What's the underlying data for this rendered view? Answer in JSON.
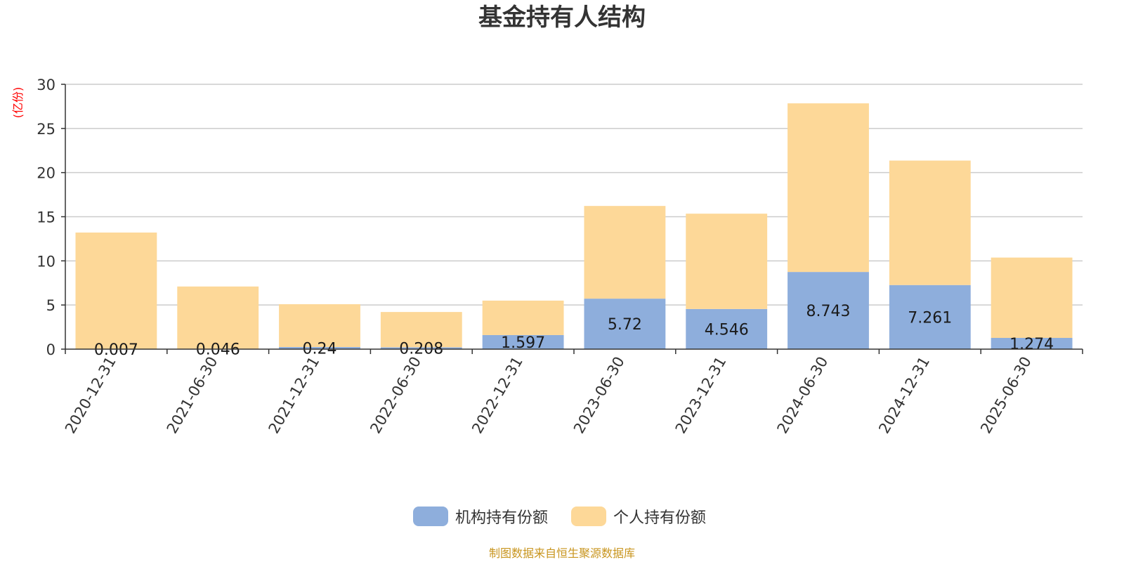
{
  "chart_data": {
    "type": "bar",
    "stacked": true,
    "title": "基金持有人结构",
    "ylabel": "(亿份)",
    "ylim": [
      0,
      30
    ],
    "yticks": [
      0,
      5,
      10,
      15,
      20,
      25,
      30
    ],
    "grid": true,
    "legend_position": "bottom",
    "categories": [
      "2020-12-31",
      "2021-06-30",
      "2021-12-31",
      "2022-06-30",
      "2022-12-31",
      "2023-06-30",
      "2023-12-31",
      "2024-06-30",
      "2024-12-31",
      "2025-06-30"
    ],
    "series": [
      {
        "name": "机构持有份额",
        "color": "#8eaedc",
        "values": [
          0.007,
          0.046,
          0.24,
          0.208,
          1.597,
          5.72,
          4.546,
          8.743,
          7.261,
          1.274
        ],
        "labels": [
          "0.007",
          "0.046",
          "0.24",
          "0.208",
          "1.597",
          "5.72",
          "4.546",
          "8.743",
          "7.261",
          "1.274"
        ]
      },
      {
        "name": "个人持有份额",
        "color": "#fdd898",
        "values": [
          13.2,
          7.05,
          4.85,
          4.0,
          3.9,
          10.5,
          10.8,
          19.1,
          14.1,
          9.1
        ]
      }
    ],
    "source": "制图数据来自恒生聚源数据库",
    "colors": {
      "unit_label": "#ff0000",
      "source": "#c8951e",
      "grid": "#cccccc",
      "axis": "#333333"
    }
  }
}
